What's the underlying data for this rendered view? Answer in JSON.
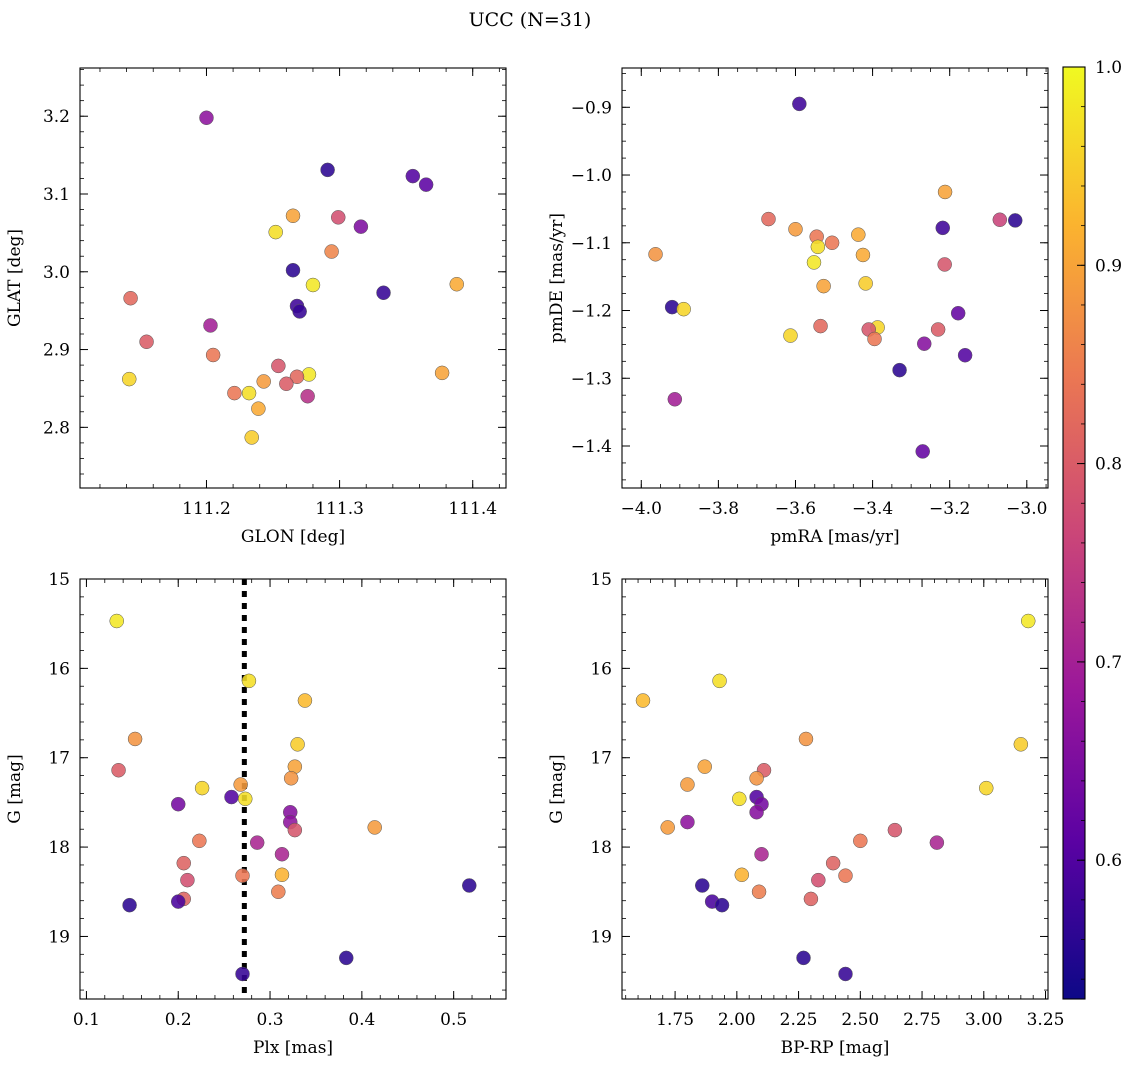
{
  "title": "UCC (N=31)",
  "chart_data": {
    "type": "scatter",
    "colormap": "plasma",
    "colorbar": {
      "range": [
        0.53,
        1.0
      ],
      "ticks": [
        0.6,
        0.7,
        0.8,
        0.9,
        1.0
      ],
      "tick_labels": [
        "0.6",
        "0.7",
        "0.8",
        "0.9",
        "1.0"
      ]
    },
    "marker_colors": [
      "#0d0887",
      "#5b02a3",
      "#9a179b",
      "#cb4678",
      "#eb7852",
      "#fbb32f",
      "#f0f921"
    ],
    "panels": [
      {
        "id": "glon-glat",
        "xlabel": "GLON [deg]",
        "ylabel": "GLAT [deg]",
        "xlim": [
          111.105,
          111.425
        ],
        "ylim": [
          2.722,
          3.262
        ],
        "xticks": [
          111.2,
          111.3,
          111.4
        ],
        "xtick_labels": [
          "111.2",
          "111.3",
          "111.4"
        ],
        "yticks": [
          2.8,
          2.9,
          3.0,
          3.1,
          3.2
        ],
        "ytick_labels": [
          "2.8",
          "2.9",
          "3.0",
          "3.1",
          "3.2"
        ],
        "x_minor_step": 0.02,
        "y_minor_step": 0.02,
        "y_inverted": false,
        "points": [
          {
            "x": 111.2,
            "y": 3.198,
            "c": 0.67
          },
          {
            "x": 111.291,
            "y": 3.131,
            "c": 0.56
          },
          {
            "x": 111.355,
            "y": 3.123,
            "c": 0.6
          },
          {
            "x": 111.365,
            "y": 3.112,
            "c": 0.61
          },
          {
            "x": 111.265,
            "y": 3.072,
            "c": 0.9
          },
          {
            "x": 111.299,
            "y": 3.07,
            "c": 0.78
          },
          {
            "x": 111.316,
            "y": 3.058,
            "c": 0.65
          },
          {
            "x": 111.252,
            "y": 3.051,
            "c": 0.97
          },
          {
            "x": 111.294,
            "y": 3.026,
            "c": 0.86
          },
          {
            "x": 111.265,
            "y": 3.002,
            "c": 0.56
          },
          {
            "x": 111.388,
            "y": 2.984,
            "c": 0.91
          },
          {
            "x": 111.28,
            "y": 2.983,
            "c": 0.98
          },
          {
            "x": 111.333,
            "y": 2.973,
            "c": 0.57
          },
          {
            "x": 111.143,
            "y": 2.966,
            "c": 0.82
          },
          {
            "x": 111.268,
            "y": 2.956,
            "c": 0.58
          },
          {
            "x": 111.27,
            "y": 2.949,
            "c": 0.57
          },
          {
            "x": 111.203,
            "y": 2.931,
            "c": 0.7
          },
          {
            "x": 111.155,
            "y": 2.91,
            "c": 0.8
          },
          {
            "x": 111.205,
            "y": 2.893,
            "c": 0.84
          },
          {
            "x": 111.254,
            "y": 2.879,
            "c": 0.79
          },
          {
            "x": 111.377,
            "y": 2.87,
            "c": 0.9
          },
          {
            "x": 111.277,
            "y": 2.868,
            "c": 0.98
          },
          {
            "x": 111.268,
            "y": 2.865,
            "c": 0.82
          },
          {
            "x": 111.142,
            "y": 2.862,
            "c": 0.96
          },
          {
            "x": 111.243,
            "y": 2.859,
            "c": 0.89
          },
          {
            "x": 111.26,
            "y": 2.856,
            "c": 0.8
          },
          {
            "x": 111.221,
            "y": 2.844,
            "c": 0.84
          },
          {
            "x": 111.232,
            "y": 2.844,
            "c": 0.97
          },
          {
            "x": 111.276,
            "y": 2.84,
            "c": 0.73
          },
          {
            "x": 111.239,
            "y": 2.824,
            "c": 0.91
          },
          {
            "x": 111.234,
            "y": 2.787,
            "c": 0.95
          }
        ]
      },
      {
        "id": "pmra-pmde",
        "xlabel": "pmRA [mas/yr]",
        "ylabel": "pmDE [mas/yr]",
        "xlim": [
          -4.05,
          -2.945
        ],
        "ylim": [
          -1.462,
          -0.842
        ],
        "xticks": [
          -4.0,
          -3.8,
          -3.6,
          -3.4,
          -3.2,
          -3.0
        ],
        "xtick_labels": [
          "−4.0",
          "−3.8",
          "−3.6",
          "−3.4",
          "−3.2",
          "−3.0"
        ],
        "yticks": [
          -1.4,
          -1.3,
          -1.2,
          -1.1,
          -1.0,
          -0.9
        ],
        "ytick_labels": [
          "−1.4",
          "−1.3",
          "−1.2",
          "−1.1",
          "−1.0",
          "−0.9"
        ],
        "x_minor_step": 0.05,
        "y_minor_step": 0.025,
        "y_inverted": false,
        "points": [
          {
            "x": -3.59,
            "y": -0.895,
            "c": 0.58
          },
          {
            "x": -3.212,
            "y": -1.025,
            "c": 0.9
          },
          {
            "x": -3.67,
            "y": -1.065,
            "c": 0.82
          },
          {
            "x": -3.07,
            "y": -1.066,
            "c": 0.76
          },
          {
            "x": -3.03,
            "y": -1.067,
            "c": 0.56
          },
          {
            "x": -3.218,
            "y": -1.078,
            "c": 0.58
          },
          {
            "x": -3.6,
            "y": -1.08,
            "c": 0.89
          },
          {
            "x": -3.437,
            "y": -1.088,
            "c": 0.91
          },
          {
            "x": -3.545,
            "y": -1.091,
            "c": 0.84
          },
          {
            "x": -3.505,
            "y": -1.1,
            "c": 0.84
          },
          {
            "x": -3.542,
            "y": -1.106,
            "c": 0.97
          },
          {
            "x": -3.963,
            "y": -1.117,
            "c": 0.88
          },
          {
            "x": -3.425,
            "y": -1.118,
            "c": 0.91
          },
          {
            "x": -3.552,
            "y": -1.129,
            "c": 0.98
          },
          {
            "x": -3.213,
            "y": -1.132,
            "c": 0.79
          },
          {
            "x": -3.418,
            "y": -1.16,
            "c": 0.95
          },
          {
            "x": -3.527,
            "y": -1.164,
            "c": 0.9
          },
          {
            "x": -3.92,
            "y": -1.195,
            "c": 0.56
          },
          {
            "x": -3.89,
            "y": -1.198,
            "c": 0.96
          },
          {
            "x": -3.178,
            "y": -1.204,
            "c": 0.62
          },
          {
            "x": -3.535,
            "y": -1.223,
            "c": 0.82
          },
          {
            "x": -3.387,
            "y": -1.225,
            "c": 0.96
          },
          {
            "x": -3.41,
            "y": -1.228,
            "c": 0.79
          },
          {
            "x": -3.23,
            "y": -1.228,
            "c": 0.8
          },
          {
            "x": -3.613,
            "y": -1.237,
            "c": 0.96
          },
          {
            "x": -3.395,
            "y": -1.242,
            "c": 0.84
          },
          {
            "x": -3.266,
            "y": -1.249,
            "c": 0.66
          },
          {
            "x": -3.16,
            "y": -1.266,
            "c": 0.6
          },
          {
            "x": -3.33,
            "y": -1.288,
            "c": 0.56
          },
          {
            "x": -3.913,
            "y": -1.331,
            "c": 0.7
          },
          {
            "x": -3.27,
            "y": -1.408,
            "c": 0.62
          }
        ]
      },
      {
        "id": "plx-g",
        "xlabel": "Plx [mas]",
        "ylabel": "G [mag]",
        "xlim": [
          0.093,
          0.557
        ],
        "ylim": [
          15.0,
          19.7
        ],
        "xticks": [
          0.1,
          0.2,
          0.3,
          0.4,
          0.5
        ],
        "xtick_labels": [
          "0.1",
          "0.2",
          "0.3",
          "0.4",
          "0.5"
        ],
        "yticks": [
          15,
          16,
          17,
          18,
          19
        ],
        "ytick_labels": [
          "15",
          "16",
          "17",
          "18",
          "19"
        ],
        "x_minor_step": 0.02,
        "y_minor_step": 0.2,
        "y_inverted": true,
        "vline": 0.272,
        "points": [
          {
            "x": 0.133,
            "y": 15.47,
            "c": 0.98
          },
          {
            "x": 0.277,
            "y": 16.14,
            "c": 0.97
          },
          {
            "x": 0.338,
            "y": 16.36,
            "c": 0.93
          },
          {
            "x": 0.153,
            "y": 16.79,
            "c": 0.88
          },
          {
            "x": 0.33,
            "y": 16.85,
            "c": 0.95
          },
          {
            "x": 0.327,
            "y": 17.1,
            "c": 0.9
          },
          {
            "x": 0.135,
            "y": 17.14,
            "c": 0.8
          },
          {
            "x": 0.323,
            "y": 17.23,
            "c": 0.88
          },
          {
            "x": 0.268,
            "y": 17.3,
            "c": 0.89
          },
          {
            "x": 0.226,
            "y": 17.34,
            "c": 0.96
          },
          {
            "x": 0.258,
            "y": 17.44,
            "c": 0.6
          },
          {
            "x": 0.273,
            "y": 17.46,
            "c": 0.97
          },
          {
            "x": 0.2,
            "y": 17.52,
            "c": 0.64
          },
          {
            "x": 0.322,
            "y": 17.61,
            "c": 0.66
          },
          {
            "x": 0.322,
            "y": 17.72,
            "c": 0.67
          },
          {
            "x": 0.414,
            "y": 17.78,
            "c": 0.89
          },
          {
            "x": 0.327,
            "y": 17.81,
            "c": 0.79
          },
          {
            "x": 0.223,
            "y": 17.93,
            "c": 0.84
          },
          {
            "x": 0.286,
            "y": 17.95,
            "c": 0.71
          },
          {
            "x": 0.313,
            "y": 18.08,
            "c": 0.71
          },
          {
            "x": 0.206,
            "y": 18.18,
            "c": 0.81
          },
          {
            "x": 0.313,
            "y": 18.31,
            "c": 0.92
          },
          {
            "x": 0.27,
            "y": 18.32,
            "c": 0.84
          },
          {
            "x": 0.21,
            "y": 18.37,
            "c": 0.78
          },
          {
            "x": 0.517,
            "y": 18.43,
            "c": 0.56
          },
          {
            "x": 0.309,
            "y": 18.5,
            "c": 0.85
          },
          {
            "x": 0.206,
            "y": 18.58,
            "c": 0.81
          },
          {
            "x": 0.2,
            "y": 18.61,
            "c": 0.59
          },
          {
            "x": 0.147,
            "y": 18.65,
            "c": 0.56
          },
          {
            "x": 0.383,
            "y": 19.24,
            "c": 0.56
          },
          {
            "x": 0.27,
            "y": 19.42,
            "c": 0.57
          }
        ]
      },
      {
        "id": "bprp-g",
        "xlabel": "BP-RP [mag]",
        "ylabel": "G [mag]",
        "xlim": [
          1.535,
          3.26
        ],
        "ylim": [
          15.0,
          19.7
        ],
        "xticks": [
          1.75,
          2.0,
          2.25,
          2.5,
          2.75,
          3.0,
          3.25
        ],
        "xtick_labels": [
          "1.75",
          "2.00",
          "2.25",
          "2.50",
          "2.75",
          "3.00",
          "3.25"
        ],
        "yticks": [
          15,
          16,
          17,
          18,
          19
        ],
        "ytick_labels": [
          "15",
          "16",
          "17",
          "18",
          "19"
        ],
        "x_minor_step": 0.05,
        "y_minor_step": 0.2,
        "y_inverted": true,
        "points": [
          {
            "x": 3.18,
            "y": 15.47,
            "c": 0.98
          },
          {
            "x": 1.93,
            "y": 16.14,
            "c": 0.97
          },
          {
            "x": 1.62,
            "y": 16.36,
            "c": 0.93
          },
          {
            "x": 2.28,
            "y": 16.79,
            "c": 0.88
          },
          {
            "x": 3.15,
            "y": 16.85,
            "c": 0.95
          },
          {
            "x": 1.87,
            "y": 17.1,
            "c": 0.9
          },
          {
            "x": 2.11,
            "y": 17.14,
            "c": 0.8
          },
          {
            "x": 2.08,
            "y": 17.23,
            "c": 0.88
          },
          {
            "x": 1.8,
            "y": 17.3,
            "c": 0.89
          },
          {
            "x": 3.01,
            "y": 17.34,
            "c": 0.96
          },
          {
            "x": 2.08,
            "y": 17.44,
            "c": 0.6
          },
          {
            "x": 2.01,
            "y": 17.46,
            "c": 0.97
          },
          {
            "x": 2.1,
            "y": 17.52,
            "c": 0.64
          },
          {
            "x": 2.08,
            "y": 17.61,
            "c": 0.66
          },
          {
            "x": 1.8,
            "y": 17.72,
            "c": 0.67
          },
          {
            "x": 1.72,
            "y": 17.78,
            "c": 0.89
          },
          {
            "x": 2.64,
            "y": 17.81,
            "c": 0.79
          },
          {
            "x": 2.5,
            "y": 17.93,
            "c": 0.84
          },
          {
            "x": 2.81,
            "y": 17.95,
            "c": 0.71
          },
          {
            "x": 2.1,
            "y": 18.08,
            "c": 0.71
          },
          {
            "x": 2.39,
            "y": 18.18,
            "c": 0.81
          },
          {
            "x": 2.02,
            "y": 18.31,
            "c": 0.92
          },
          {
            "x": 2.44,
            "y": 18.32,
            "c": 0.84
          },
          {
            "x": 2.33,
            "y": 18.37,
            "c": 0.78
          },
          {
            "x": 1.86,
            "y": 18.43,
            "c": 0.56
          },
          {
            "x": 2.09,
            "y": 18.5,
            "c": 0.85
          },
          {
            "x": 2.3,
            "y": 18.58,
            "c": 0.81
          },
          {
            "x": 1.9,
            "y": 18.61,
            "c": 0.59
          },
          {
            "x": 1.94,
            "y": 18.65,
            "c": 0.56
          },
          {
            "x": 2.27,
            "y": 19.24,
            "c": 0.56
          },
          {
            "x": 2.44,
            "y": 19.42,
            "c": 0.57
          }
        ]
      }
    ]
  }
}
